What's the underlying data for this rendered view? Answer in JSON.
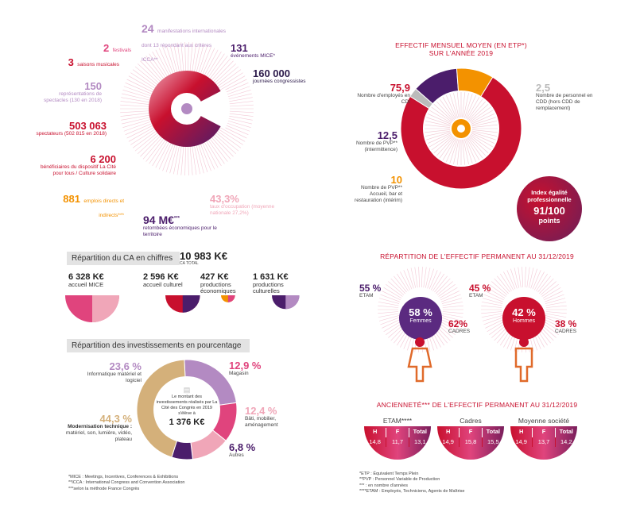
{
  "chart_data": [
    {
      "type": "pie",
      "title": "EFFECTIF MENSUEL MOYEN (EN ETP*) SUR L'ANNÉE 2019",
      "series": [
        {
          "name": "Nombre d'employés en CDI",
          "value": 75.9
        },
        {
          "name": "Nombre de personnel en CDD (hors CDD de remplacement)",
          "value": 2.5
        },
        {
          "name": "Nombre de PVP** (intermittence)",
          "value": 12.5
        },
        {
          "name": "Nombre de PVP** Accueil, bar et restauration (intérim)",
          "value": 10
        }
      ]
    },
    {
      "type": "pie",
      "title": "Répartition des investissements en pourcentage",
      "series": [
        {
          "name": "Informatique matériel et logiciel",
          "value": 23.6
        },
        {
          "name": "Magasin",
          "value": 12.9
        },
        {
          "name": "Bâti, mobilier, aménagement",
          "value": 12.4
        },
        {
          "name": "Autres",
          "value": 6.8
        },
        {
          "name": "Modernisation technique : matériel, son, lumière, vidéo, plateau",
          "value": 44.3
        }
      ]
    },
    {
      "type": "bar",
      "title": "Répartition du CA en chiffres",
      "categories": [
        "accueil MICE",
        "accueil culturel",
        "productions économiques",
        "productions culturelles"
      ],
      "values": [
        6328,
        2596,
        427,
        1631
      ]
    }
  ],
  "colors": {
    "purple": "#4b1d6b",
    "red": "#c8102e",
    "pink": "#e0447d",
    "orange": "#f39200",
    "lavender": "#b38ac2",
    "rose": "#f0a6b8",
    "tan": "#d4b07a",
    "grey": "#bbbbbb"
  },
  "left": {
    "stats": {
      "manif_num": "24",
      "manif_txt": "manifestations internationales dont 13 répondant aux critères ICCA**",
      "festivals_num": "2",
      "festivals_txt": "festivals",
      "mice_num": "131",
      "mice_txt": "événements MICE*",
      "saisons_num": "3",
      "saisons_txt": "saisons musicales",
      "journees_num": "160 000",
      "journees_txt": "journées congressistes",
      "repr_num": "150",
      "repr_txt": "représentations de spectacles (130 en 2018)",
      "spect_num": "503 063",
      "spect_txt": "spectateurs (502 815 en 2018)",
      "benef_num": "6 200",
      "benef_txt": "bénéficiaires du dispositif La Cité pour tous / Culture solidaire",
      "emplois_num": "881",
      "emplois_txt": "emplois directs et indirects***",
      "occup_num": "43,3%",
      "occup_txt": "taux d'occupation (moyenne nationale 27,2%)",
      "retomb_num": "94 M€",
      "retomb_sup": "***",
      "retomb_txt": "retombées économiques pour le territoire"
    },
    "ca": {
      "header": "Répartition du CA en chiffres",
      "total_num": "10 983 K€",
      "total_lbl": "CA TOTAL",
      "items": [
        {
          "num": "6 328 K€",
          "lbl": "accueil MICE"
        },
        {
          "num": "2 596 K€",
          "lbl": "accueil culturel"
        },
        {
          "num": "427 K€",
          "lbl": "productions économiques"
        },
        {
          "num": "1 631 K€",
          "lbl": "productions culturelles"
        }
      ]
    },
    "invest": {
      "header": "Répartition des investissements en pourcentage",
      "informatique_pct": "23,6 %",
      "informatique_lbl": "Informatique matériel et logiciel",
      "magasin_pct": "12,9 %",
      "magasin_lbl": "Magasin",
      "bati_pct": "12,4 %",
      "bati_lbl": "Bâti, mobilier, aménagement",
      "autres_pct": "6,8 %",
      "autres_lbl": "Autres",
      "modern_pct": "44,3 %",
      "modern_lbl_bold": "Modernisation technique :",
      "modern_lbl": "matériel, son, lumière, vidéo, plateau",
      "center_txt": "Le montant des investissements réalisés par La Cité des Congrès en 2019 s'élève à",
      "center_amount": "1 376 K€"
    },
    "footnotes": [
      "*MICE : Meetings, Incentives, Conferences & Exhibitions",
      "**ICCA : International Congress and Convention Association",
      "***selon la méthode France Congrès"
    ]
  },
  "right": {
    "effectif": {
      "title_line1": "EFFECTIF MENSUEL MOYEN (EN ETP*)",
      "title_line2": "SUR L'ANNÉE 2019",
      "cdi_num": "75,9",
      "cdi_txt": "Nombre d'employés en CDI",
      "cdd_num": "2,5",
      "cdd_txt": "Nombre de personnel en CDD (hors CDD de remplacement)",
      "pvp_num": "12,5",
      "pvp_txt": "Nombre de PVP** (intermittence)",
      "acc_num": "10",
      "acc_txt": "Nombre de PVP** Accueil, bar et restauration (intérim)",
      "index_l1": "Index égalité",
      "index_l2": "professionnelle",
      "index_val": "91/100",
      "index_unit": "points"
    },
    "repartition": {
      "title": "RÉPARTITION DE L'EFFECTIF PERMANENT AU 31/12/2019",
      "f_etam_pct": "55 %",
      "f_etam_lbl": "ETAM",
      "f_center_pct": "58 %",
      "f_center_lbl": "Femmes",
      "f_cadres_pct": "62%",
      "f_cadres_lbl": "CADRES",
      "h_etam_pct": "45 %",
      "h_etam_lbl": "ETAM",
      "h_center_pct": "42 %",
      "h_center_lbl": "Hommes",
      "h_cadres_pct": "38 %",
      "h_cadres_lbl": "CADRES"
    },
    "anciennete": {
      "title": "ANCIENNETÉ*** DE L'EFFECTIF PERMANENT AU 31/12/2019",
      "groups": [
        {
          "label": "ETAM****",
          "h": "14,8",
          "f": "11,7",
          "total": "13,1"
        },
        {
          "label": "Cadres",
          "h": "14,9",
          "f": "15,8",
          "total": "15,5"
        },
        {
          "label": "Moyenne société",
          "h": "14,9",
          "f": "13,7",
          "total": "14,2"
        }
      ],
      "col_h": "H",
      "col_f": "F",
      "col_total": "Total"
    },
    "footnotes": [
      "*ETP : Équivalent Temps Plein",
      "**PVP : Personnel Variable de Production",
      "*** : en nombre d'années",
      "****ETAM : Employés, Techniciens, Agents de Maîtrise"
    ]
  }
}
